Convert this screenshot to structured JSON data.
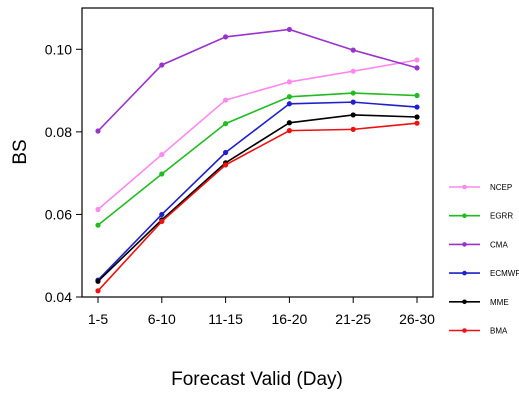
{
  "chart_data": {
    "type": "line",
    "xlabel": "Forecast Valid (Day)",
    "ylabel": "BS",
    "categories": [
      "1-5",
      "6-10",
      "11-15",
      "16-20",
      "21-25",
      "26-30"
    ],
    "ylim": [
      0.04,
      0.11
    ],
    "yticks": [
      0.04,
      0.06,
      0.08,
      0.1
    ],
    "ytick_labels": [
      "0.04",
      "0.06",
      "0.08",
      "0.10"
    ],
    "grid": false,
    "legend_position": "right",
    "series": [
      {
        "name": "NCEP",
        "color": "#ff88ee",
        "values": [
          0.0612,
          0.0745,
          0.0877,
          0.0921,
          0.0947,
          0.0974
        ]
      },
      {
        "name": "EGRR",
        "color": "#22bb22",
        "values": [
          0.0574,
          0.0698,
          0.082,
          0.0885,
          0.0894,
          0.0888
        ]
      },
      {
        "name": "CMA",
        "color": "#9933cc",
        "values": [
          0.0802,
          0.0962,
          0.103,
          0.1048,
          0.0998,
          0.0955
        ]
      },
      {
        "name": "ECMWF",
        "color": "#1f1fcc",
        "values": [
          0.0441,
          0.06,
          0.075,
          0.0868,
          0.0872,
          0.086
        ]
      },
      {
        "name": "MME",
        "color": "#000000",
        "values": [
          0.0438,
          0.0587,
          0.0725,
          0.0822,
          0.0841,
          0.0836
        ]
      },
      {
        "name": "BMA",
        "color": "#ee1111",
        "values": [
          0.0415,
          0.0583,
          0.072,
          0.0803,
          0.0806,
          0.0821
        ]
      }
    ]
  }
}
